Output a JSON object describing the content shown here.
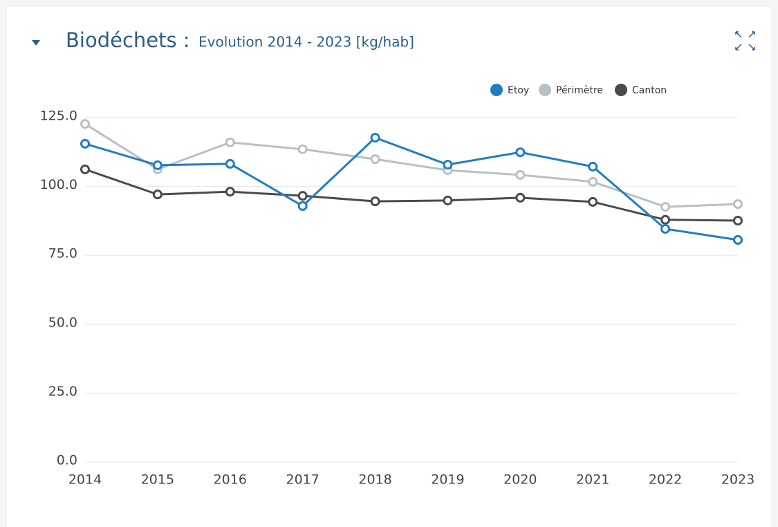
{
  "chart_data": {
    "type": "line",
    "title": "Biodéchets :",
    "subtitle": "Evolution 2014 - 2023 [kg/hab]",
    "categories": [
      "2014",
      "2015",
      "2016",
      "2017",
      "2018",
      "2019",
      "2020",
      "2021",
      "2022",
      "2023"
    ],
    "series": [
      {
        "name": "Etoy",
        "color": "#1f7dc1",
        "values": [
          115.5,
          107.7,
          108.2,
          92.9,
          117.7,
          107.9,
          112.4,
          107.2,
          84.6,
          80.6
        ]
      },
      {
        "name": "Périmètre",
        "color": "#b8bfc6",
        "values": [
          122.7,
          106.2,
          116.0,
          113.5,
          109.9,
          105.9,
          104.2,
          101.7,
          92.6,
          93.6
        ]
      },
      {
        "name": "Canton",
        "color": "#4a4a4a",
        "values": [
          106.2,
          97.1,
          98.1,
          96.6,
          94.6,
          94.9,
          95.9,
          94.4,
          87.9,
          87.6
        ]
      }
    ],
    "ylim": [
      0,
      125
    ],
    "yticks": [
      {
        "value": 0,
        "label": "0.0"
      },
      {
        "value": 25,
        "label": "25.0"
      },
      {
        "value": 50,
        "label": "50.0"
      },
      {
        "value": 75,
        "label": "75.0"
      },
      {
        "value": 100,
        "label": "100.0"
      },
      {
        "value": 125,
        "label": "125.0"
      }
    ],
    "grid": true,
    "legend": "top-right"
  }
}
